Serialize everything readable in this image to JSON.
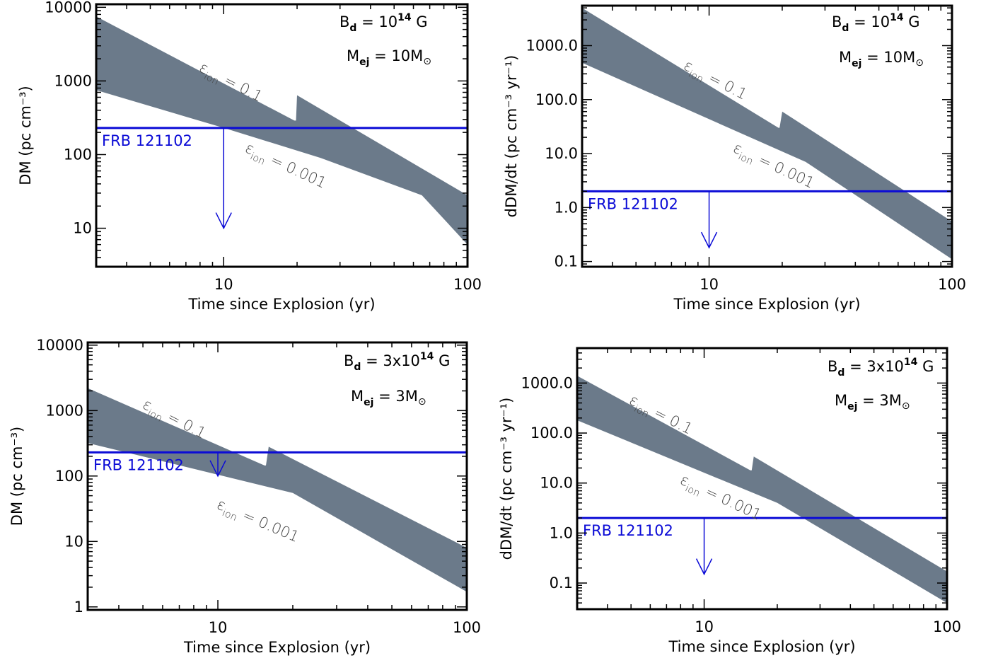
{
  "colors": {
    "band": "#6b7a8a",
    "frb": "#0b0bd6",
    "axis": "#000000"
  },
  "chart_data": [
    {
      "type": "area",
      "xlabel": "Time since Explosion (yr)",
      "ylabel": "DM (pc cm⁻³)",
      "xscale": "log",
      "yscale": "log",
      "xlim": [
        3,
        100
      ],
      "ylim": [
        3,
        11000
      ],
      "xticks": [
        {
          "v": 10,
          "label": "10"
        },
        {
          "v": 100,
          "label": "100"
        }
      ],
      "yticks": [
        {
          "v": 10,
          "label": "10"
        },
        {
          "v": 100,
          "label": "100"
        },
        {
          "v": 1000,
          "label": "1000"
        },
        {
          "v": 10000,
          "label": "10000"
        }
      ],
      "annotations": {
        "bd_prefix": "B",
        "bd_sub": "d",
        "bd_eq": " = ",
        "bd_value": "10",
        "bd_sup": "14",
        "bd_unit": " G",
        "mej_prefix": "M",
        "mej_sub": "ej",
        "mej_eq": " = ",
        "mej_value": "10M",
        "mej_sym": "⊙"
      },
      "band_labels": {
        "eps": "ε",
        "sub": "ion",
        "high": " = 0.1",
        "low": " = 0.001"
      },
      "band_upper": [
        [
          3,
          7500
        ],
        [
          19.5,
          290
        ],
        [
          19.8,
          290
        ],
        [
          20,
          640
        ],
        [
          100,
          28
        ]
      ],
      "band_lower": [
        [
          3,
          750
        ],
        [
          10,
          230
        ],
        [
          25,
          90
        ],
        [
          65,
          28
        ],
        [
          100,
          6
        ]
      ],
      "frb": {
        "label": "FRB 121102",
        "value": 230,
        "arrow_x": 10,
        "arrow_to": 10
      }
    },
    {
      "type": "area",
      "xlabel": "Time since Explosion (yr)",
      "ylabel": "dDM/dt (pc cm⁻³ yr⁻¹)",
      "xscale": "log",
      "yscale": "log",
      "xlim": [
        3,
        100
      ],
      "ylim": [
        0.08,
        5500
      ],
      "xticks": [
        {
          "v": 10,
          "label": "10"
        },
        {
          "v": 100,
          "label": "100"
        }
      ],
      "yticks": [
        {
          "v": 0.1,
          "label": "0.1"
        },
        {
          "v": 1,
          "label": "1.0"
        },
        {
          "v": 10,
          "label": "10.0"
        },
        {
          "v": 100,
          "label": "100.0"
        },
        {
          "v": 1000,
          "label": "1000.0"
        }
      ],
      "annotations": {
        "bd_prefix": "B",
        "bd_sub": "d",
        "bd_eq": " = ",
        "bd_value": "10",
        "bd_sup": "14",
        "bd_unit": " G",
        "mej_prefix": "M",
        "mej_sub": "ej",
        "mej_eq": " = ",
        "mej_value": "10M",
        "mej_sym": "⊙"
      },
      "band_labels": {
        "eps": "ε",
        "sub": "ion",
        "high": " = 0.1",
        "low": " = 0.001"
      },
      "band_upper": [
        [
          3,
          5000
        ],
        [
          19.3,
          30
        ],
        [
          19.5,
          30
        ],
        [
          20,
          60
        ],
        [
          100,
          0.55
        ]
      ],
      "band_lower": [
        [
          3,
          480
        ],
        [
          25,
          7
        ],
        [
          100,
          0.11
        ]
      ],
      "frb": {
        "label": "FRB 121102",
        "value": 2,
        "arrow_x": 10,
        "arrow_to": 0.18
      }
    },
    {
      "type": "area",
      "xlabel": "Time since Explosion (yr)",
      "ylabel": "DM (pc cm⁻³)",
      "xscale": "log",
      "yscale": "log",
      "xlim": [
        3,
        100
      ],
      "ylim": [
        0.9,
        11000
      ],
      "xticks": [
        {
          "v": 10,
          "label": "10"
        },
        {
          "v": 100,
          "label": "100"
        }
      ],
      "yticks": [
        {
          "v": 1,
          "label": "1"
        },
        {
          "v": 10,
          "label": "10"
        },
        {
          "v": 100,
          "label": "100"
        },
        {
          "v": 1000,
          "label": "1000"
        },
        {
          "v": 10000,
          "label": "10000"
        }
      ],
      "annotations": {
        "bd_prefix": "B",
        "bd_sub": "d",
        "bd_eq": " = ",
        "bd_value": "3x10",
        "bd_sup": "14",
        "bd_unit": " G",
        "mej_prefix": "M",
        "mej_sub": "ej",
        "mej_eq": " = ",
        "mej_value": "3M",
        "mej_sym": "⊙"
      },
      "band_labels": {
        "eps": "ε",
        "sub": "ion",
        "high": " = 0.1",
        "low": " = 0.001"
      },
      "band_upper": [
        [
          3,
          2200
        ],
        [
          15.4,
          145
        ],
        [
          15.6,
          145
        ],
        [
          16,
          280
        ],
        [
          100,
          8
        ]
      ],
      "band_lower": [
        [
          3,
          320
        ],
        [
          20,
          55
        ],
        [
          100,
          1.7
        ]
      ],
      "frb": {
        "label": "FRB 121102",
        "value": 230,
        "arrow_x": 10,
        "arrow_to": 100
      }
    },
    {
      "type": "area",
      "xlabel": "Time since Explosion (yr)",
      "ylabel": "dDM/dt (pc cm⁻³ yr⁻¹)",
      "xscale": "log",
      "yscale": "log",
      "xlim": [
        3,
        100
      ],
      "ylim": [
        0.03,
        5000
      ],
      "xticks": [
        {
          "v": 10,
          "label": "10"
        },
        {
          "v": 100,
          "label": "100"
        }
      ],
      "yticks": [
        {
          "v": 0.1,
          "label": "0.1"
        },
        {
          "v": 1,
          "label": "1.0"
        },
        {
          "v": 10,
          "label": "10.0"
        },
        {
          "v": 100,
          "label": "100.0"
        },
        {
          "v": 1000,
          "label": "1000.0"
        }
      ],
      "annotations": {
        "bd_prefix": "B",
        "bd_sub": "d",
        "bd_eq": " = ",
        "bd_value": "3x10",
        "bd_sup": "14",
        "bd_unit": " G",
        "mej_prefix": "M",
        "mej_sub": "ej",
        "mej_eq": " = ",
        "mej_value": "3M",
        "mej_sym": "⊙"
      },
      "band_labels": {
        "eps": "ε",
        "sub": "ion",
        "high": " = 0.1",
        "low": " = 0.001"
      },
      "band_upper": [
        [
          3,
          1400
        ],
        [
          15.5,
          18
        ],
        [
          15.7,
          18
        ],
        [
          16,
          34
        ],
        [
          100,
          0.17
        ]
      ],
      "band_lower": [
        [
          3,
          180
        ],
        [
          20,
          4
        ],
        [
          100,
          0.04
        ]
      ],
      "frb": {
        "label": "FRB 121102",
        "value": 2,
        "arrow_x": 10,
        "arrow_to": 0.15
      }
    }
  ]
}
